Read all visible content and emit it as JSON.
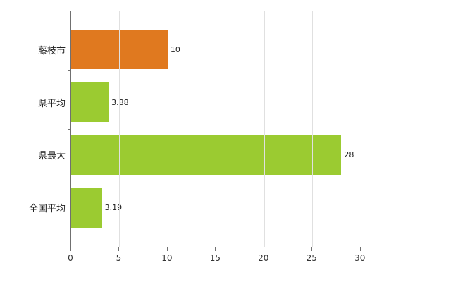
{
  "chart_data": {
    "type": "bar",
    "orientation": "horizontal",
    "title": "",
    "xlabel": "",
    "ylabel": "",
    "categories": [
      "藤枝市",
      "県平均",
      "県最大",
      "全国平均"
    ],
    "values": [
      10,
      3.88,
      28,
      3.19
    ],
    "value_labels": [
      "10",
      "3.88",
      "28",
      "3.19"
    ],
    "bar_colors": [
      "#e0791f",
      "#9bcb31",
      "#9bcb31",
      "#9bcb31"
    ],
    "xlim": [
      0,
      33.6
    ],
    "xticks": [
      0,
      5,
      10,
      15,
      20,
      25,
      30
    ],
    "xtick_labels": [
      "0",
      "5",
      "10",
      "15",
      "20",
      "25",
      "30"
    ],
    "grid": "vertical",
    "gridline_color": "#e0e0e0",
    "axis_color": "#707070",
    "background_color": "#ffffff",
    "legend": "none"
  }
}
